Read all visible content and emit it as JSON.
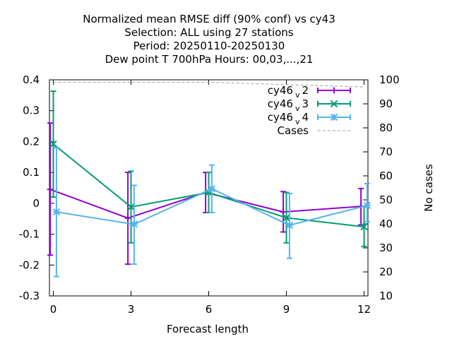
{
  "chart_data": {
    "type": "line",
    "title_lines": [
      "Normalized mean RMSE diff (90% conf) vs cy43",
      "Selection: ALL using    27 stations",
      "Period: 20250110-20250130",
      "Dew point T 700hPa   Hours:  00,03,...,21"
    ],
    "xlabel": "Forecast length",
    "y2label": "No cases",
    "x_ticks": [
      0,
      3,
      6,
      9,
      12
    ],
    "y_ticks": [
      0.4,
      0.3,
      0.2,
      0.1,
      0,
      -0.1,
      -0.2,
      -0.3
    ],
    "y_tick_labels": [
      "0.4",
      "0.3",
      "0.2",
      "0.1",
      "0",
      "-0.1",
      "-0.2",
      "-0.3"
    ],
    "y2_ticks": [
      100,
      90,
      80,
      70,
      60,
      50,
      40,
      30,
      20,
      10
    ],
    "xlim": [
      -0.15,
      12.15
    ],
    "ylim": [
      -0.3,
      0.4
    ],
    "y2lim": [
      10,
      100
    ],
    "grid": false,
    "legend_position": "top-right",
    "series": [
      {
        "name": "cy46",
        "subscript": "v",
        "suffix": "2",
        "color": "#9400d3",
        "marker": "plus",
        "offset": -0.12,
        "x": [
          0,
          3,
          6,
          9,
          12
        ],
        "y": [
          0.045,
          -0.048,
          0.035,
          -0.028,
          -0.01
        ],
        "y_low": [
          -0.168,
          -0.197,
          -0.03,
          -0.093,
          -0.07
        ],
        "y_high": [
          0.26,
          0.1,
          0.1,
          0.038,
          0.048
        ]
      },
      {
        "name": "cy46",
        "subscript": "v",
        "suffix": "3",
        "color": "#009e73",
        "marker": "cross",
        "offset": 0.0,
        "x": [
          0,
          3,
          6,
          9,
          12
        ],
        "y": [
          0.192,
          -0.012,
          0.035,
          -0.047,
          -0.076
        ],
        "y_low": [
          0.02,
          -0.128,
          -0.03,
          -0.128,
          -0.14
        ],
        "y_high": [
          0.363,
          0.104,
          0.1,
          0.035,
          -0.01
        ]
      },
      {
        "name": "cy46",
        "subscript": "v",
        "suffix": "4",
        "color": "#56b4e9",
        "marker": "star",
        "offset": 0.12,
        "x": [
          0,
          3,
          6,
          9,
          12
        ],
        "y": [
          -0.028,
          -0.068,
          0.047,
          -0.071,
          -0.007
        ],
        "y_low": [
          -0.237,
          -0.197,
          -0.03,
          -0.178,
          -0.06
        ],
        "y_high": [
          0.18,
          0.058,
          0.124,
          0.032,
          0.064
        ]
      },
      {
        "name": "Cases",
        "color": "#a0a0a0",
        "axis": "y2",
        "dashed": true,
        "x": [
          0,
          3,
          6,
          9,
          12
        ],
        "y": [
          99,
          99,
          99,
          98,
          97
        ]
      }
    ]
  }
}
